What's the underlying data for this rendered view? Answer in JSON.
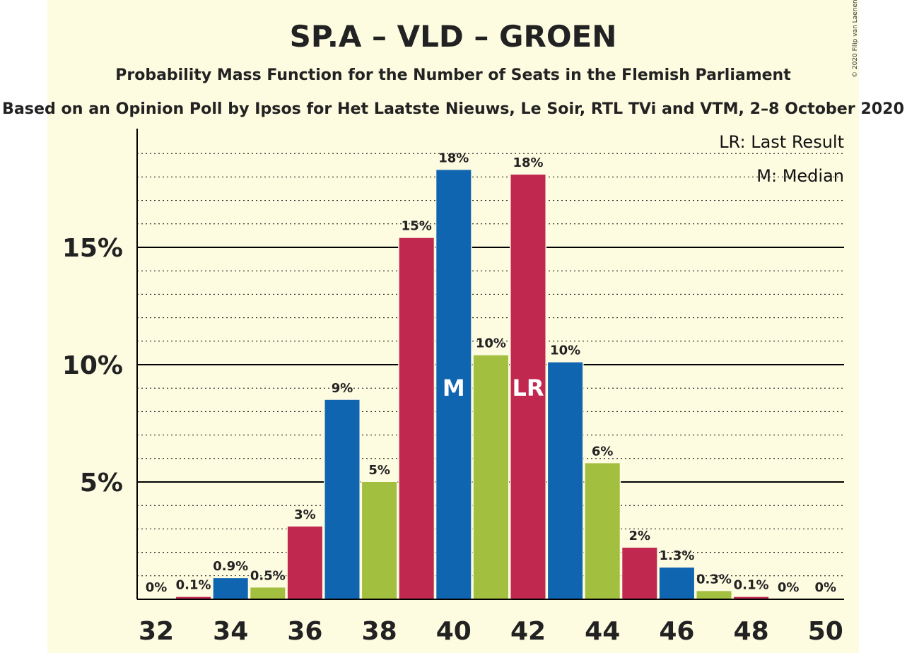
{
  "chart_data": {
    "type": "bar",
    "title": "SP.A – VLD – GROEN",
    "subtitle": "Probability Mass Function for the Number of Seats in the Flemish Parliament",
    "subtitle2": "Based on an Opinion Poll by Ipsos for Het Laatste Nieuws, Le Soir, RTL TVi and VTM, 2–8 October 2020",
    "copyright": "© 2020 Filip van Laenen",
    "legend": {
      "lr": "LR: Last Result",
      "m": "M: Median",
      "placement": "top-right"
    },
    "ylim": [
      0,
      19
    ],
    "y_ticks": [
      {
        "value": 5,
        "label": "5%"
      },
      {
        "value": 10,
        "label": "10%"
      },
      {
        "value": 15,
        "label": "15%"
      }
    ],
    "x_ticks": [
      "32",
      "34",
      "36",
      "38",
      "40",
      "42",
      "44",
      "46",
      "48",
      "50"
    ],
    "bars": [
      {
        "seats": 32,
        "value": 0,
        "label": "0%",
        "color": "#c0284f"
      },
      {
        "seats": 33,
        "value": 0.1,
        "label": "0.1%",
        "color": "#c0284f"
      },
      {
        "seats": 34,
        "value": 0.9,
        "label": "0.9%",
        "color": "#1065b1"
      },
      {
        "seats": 35,
        "value": 0.5,
        "label": "0.5%",
        "color": "#a2bf3f"
      },
      {
        "seats": 36,
        "value": 3.1,
        "label": "3%",
        "color": "#c0284f"
      },
      {
        "seats": 37,
        "value": 8.5,
        "label": "9%",
        "color": "#1065b1"
      },
      {
        "seats": 38,
        "value": 5.0,
        "label": "5%",
        "color": "#a2bf3f"
      },
      {
        "seats": 39,
        "value": 15.4,
        "label": "15%",
        "color": "#c0284f"
      },
      {
        "seats": 40,
        "value": 18.3,
        "label": "18%",
        "color": "#1065b1",
        "marker": "M"
      },
      {
        "seats": 41,
        "value": 10.4,
        "label": "10%",
        "color": "#a2bf3f"
      },
      {
        "seats": 42,
        "value": 18.1,
        "label": "18%",
        "color": "#c0284f",
        "marker": "LR"
      },
      {
        "seats": 43,
        "value": 10.1,
        "label": "10%",
        "color": "#1065b1"
      },
      {
        "seats": 44,
        "value": 5.8,
        "label": "6%",
        "color": "#a2bf3f"
      },
      {
        "seats": 45,
        "value": 2.2,
        "label": "2%",
        "color": "#c0284f"
      },
      {
        "seats": 46,
        "value": 1.35,
        "label": "1.3%",
        "color": "#1065b1"
      },
      {
        "seats": 47,
        "value": 0.35,
        "label": "0.3%",
        "color": "#a2bf3f"
      },
      {
        "seats": 48,
        "value": 0.1,
        "label": "0.1%",
        "color": "#c0284f"
      },
      {
        "seats": 49,
        "value": 0,
        "label": "0%",
        "color": "#1065b1"
      },
      {
        "seats": 50,
        "value": 0,
        "label": "0%",
        "color": "#a2bf3f"
      }
    ]
  }
}
